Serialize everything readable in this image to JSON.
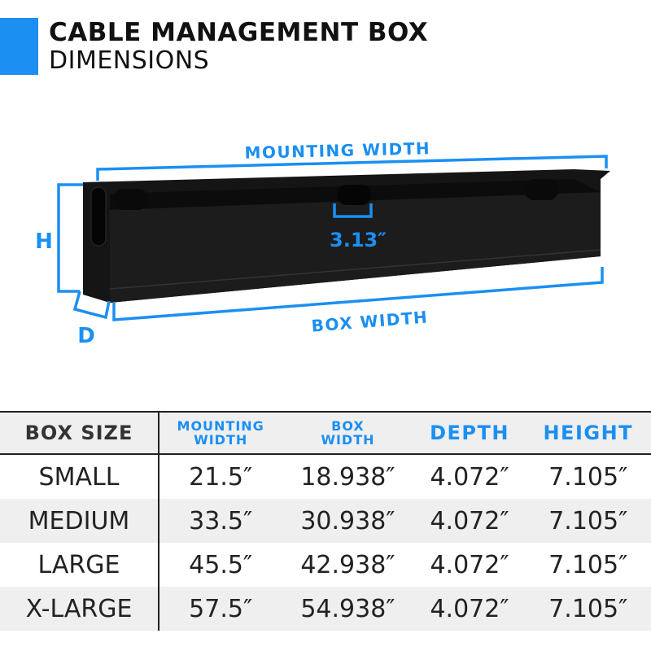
{
  "header": {
    "title": "CABLE MANAGEMENT BOX",
    "subtitle": "DIMENSIONS"
  },
  "diagram": {
    "mounting_width_label": "MOUNTING WIDTH",
    "box_width_label": "BOX WIDTH",
    "height_label": "H",
    "depth_label": "D",
    "slot_width": "3.13″"
  },
  "colors": {
    "accent": "#1b8ff2",
    "box": "#111111"
  },
  "table": {
    "headers": [
      {
        "line1": "BOX SIZE",
        "line2": ""
      },
      {
        "line1": "MOUNTING",
        "line2": "WIDTH"
      },
      {
        "line1": "BOX",
        "line2": "WIDTH"
      },
      {
        "line1": "DEPTH",
        "line2": ""
      },
      {
        "line1": "HEIGHT",
        "line2": ""
      }
    ],
    "rows": [
      [
        "SMALL",
        "21.5″",
        "18.938″",
        "4.072″",
        "7.105″"
      ],
      [
        "MEDIUM",
        "33.5″",
        "30.938″",
        "4.072″",
        "7.105″"
      ],
      [
        "LARGE",
        "45.5″",
        "42.938″",
        "4.072″",
        "7.105″"
      ],
      [
        "X-LARGE",
        "57.5″",
        "54.938″",
        "4.072″",
        "7.105″"
      ]
    ]
  }
}
